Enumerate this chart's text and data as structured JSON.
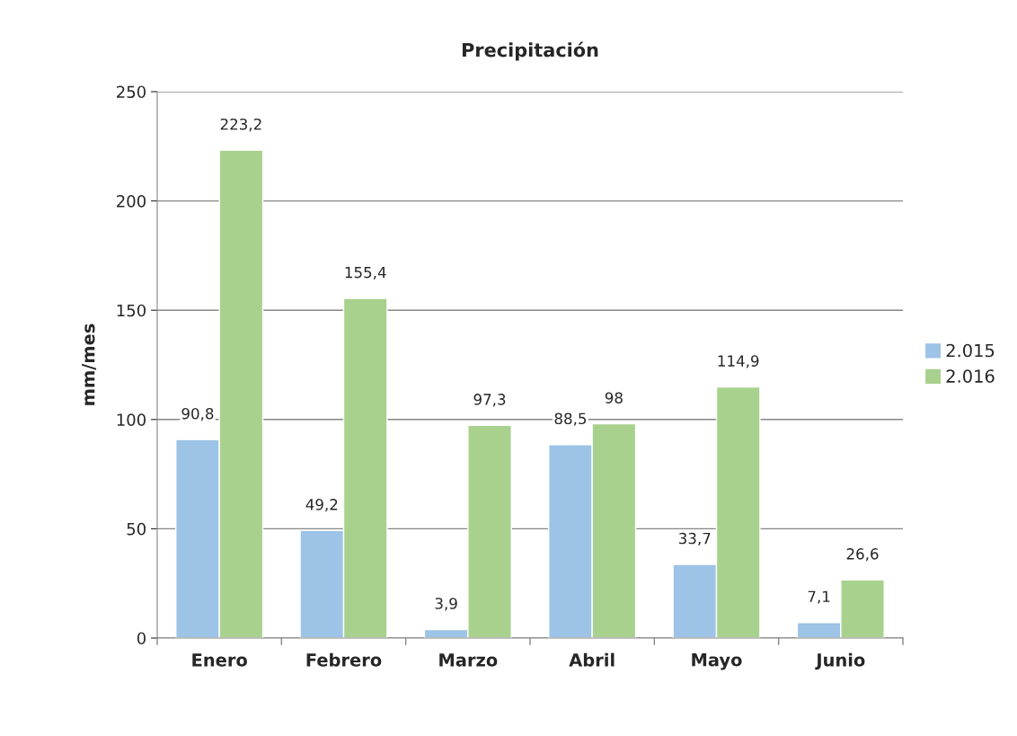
{
  "chart_data": {
    "type": "bar",
    "title": "Precipitación",
    "ylabel": "mm/mes",
    "categories": [
      "Enero",
      "Febrero",
      "Marzo",
      "Abril",
      "Mayo",
      "Junio"
    ],
    "series": [
      {
        "name": "2.015",
        "color": "#9dc3e6",
        "values": [
          90.8,
          49.2,
          3.9,
          88.5,
          33.7,
          7.1
        ],
        "value_labels": [
          "90,8",
          "49,2",
          "3,9",
          "88,5",
          "33,7",
          "7,1"
        ]
      },
      {
        "name": "2.016",
        "color": "#a9d18e",
        "values": [
          223.2,
          155.4,
          97.3,
          98,
          114.9,
          26.6
        ],
        "value_labels": [
          "223,2",
          "155,4",
          "97,3",
          "98",
          "114,9",
          "26,6"
        ]
      }
    ],
    "ylim": [
      0,
      250
    ],
    "yticks": [
      0,
      50,
      100,
      150,
      200,
      250
    ],
    "grid": "y",
    "legend": "right"
  }
}
